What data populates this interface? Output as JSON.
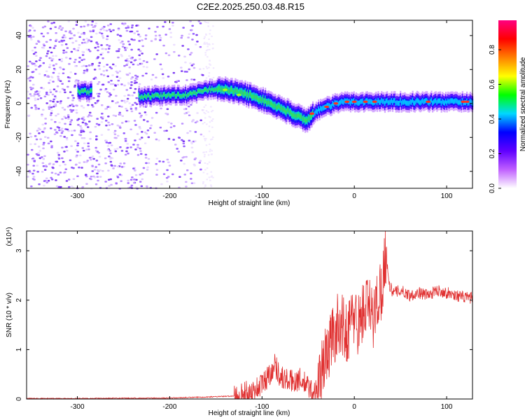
{
  "title": "C2E2.2025.250.03.48.R15",
  "chart_data": [
    {
      "type": "heatmap",
      "xlabel": "Height of straight line (km)",
      "ylabel": "Frequency (Hz)",
      "xlim": [
        -355,
        128
      ],
      "ylim": [
        -50,
        49
      ],
      "xticks": [
        -300,
        -200,
        -100,
        0,
        100
      ],
      "yticks": [
        -40,
        -20,
        0,
        20,
        40
      ],
      "colorbar": {
        "label": "Normalized spectral amplitude",
        "range": [
          0,
          0.97
        ],
        "ticks": [
          "0.0",
          "0.2",
          "0.4",
          "0.6",
          "0.8"
        ],
        "colors": [
          "#ffffff",
          "#c060ff",
          "#6000ff",
          "#0000ff",
          "#00d8ff",
          "#00ff00",
          "#ffff00",
          "#ff8000",
          "#ff0000",
          "#ff0080"
        ]
      },
      "ridge": {
        "x": [
          -300,
          -280,
          -260,
          -240,
          -220,
          -200,
          -180,
          -160,
          -150,
          -140,
          -120,
          -100,
          -80,
          -60,
          -52,
          -45,
          -40,
          -30,
          -20,
          -10,
          0,
          20,
          40,
          60,
          80,
          100,
          120,
          128
        ],
        "y": [
          7,
          7,
          6,
          4,
          4,
          5,
          5,
          8,
          9,
          8,
          6,
          2,
          -3,
          -8,
          -10,
          -6,
          -4,
          -2,
          0,
          1,
          1,
          1,
          1,
          1,
          1,
          1,
          1,
          1
        ]
      }
    },
    {
      "type": "line",
      "xlabel": "Height of straight line (km)",
      "ylabel": "SNR (10 * v/v)",
      "y_multiplier": "(x10⁴)",
      "xlim": [
        -355,
        128
      ],
      "ylim": [
        0,
        3.4
      ],
      "xticks": [
        -300,
        -200,
        -100,
        0,
        100
      ],
      "yticks": [
        0,
        1,
        2,
        3
      ],
      "series": [
        {
          "color": "#e03030",
          "x": [
            -355,
            -300,
            -200,
            -160,
            -130,
            -110,
            -100,
            -92,
            -86,
            -80,
            -70,
            -60,
            -50,
            -45,
            -40,
            -35,
            -30,
            -25,
            -20,
            -15,
            -10,
            -5,
            0,
            5,
            10,
            15,
            20,
            25,
            30,
            34,
            38,
            42,
            50,
            60,
            70,
            80,
            90,
            100,
            110,
            120,
            128
          ],
          "y": [
            0.01,
            0.01,
            0.02,
            0.04,
            0.06,
            0.15,
            0.3,
            0.5,
            0.7,
            0.45,
            0.35,
            0.4,
            0.25,
            0.12,
            0.2,
            0.6,
            0.9,
            1.2,
            1.4,
            1.6,
            1.3,
            1.5,
            1.7,
            1.5,
            1.8,
            1.9,
            1.6,
            2.0,
            2.3,
            3.0,
            2.3,
            2.15,
            2.2,
            2.1,
            2.15,
            2.1,
            2.2,
            2.15,
            2.1,
            2.05,
            2.05
          ]
        }
      ]
    }
  ]
}
